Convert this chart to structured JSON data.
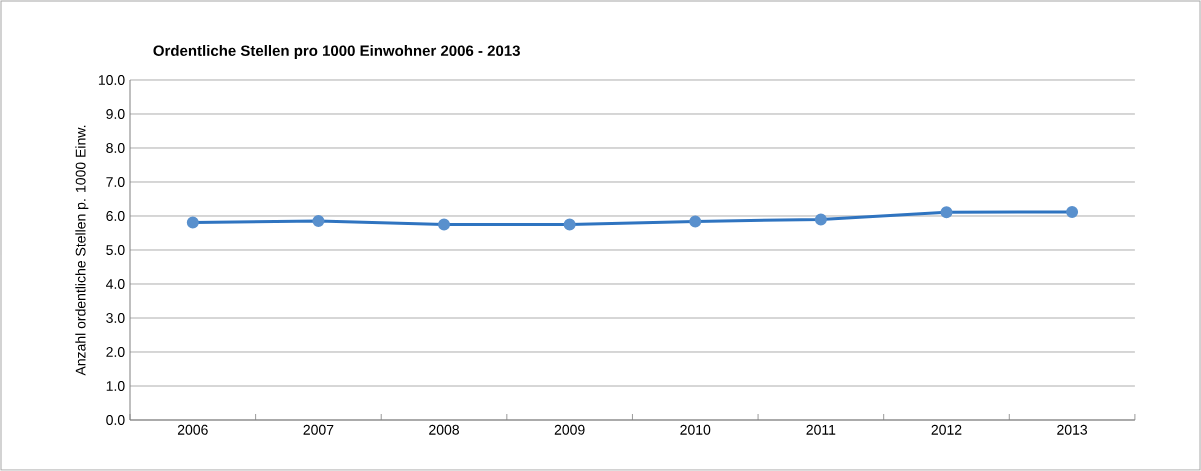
{
  "chart_data": {
    "type": "line",
    "title": "Ordentliche Stellen pro 1000 Einwohner 2006 - 2013",
    "ylabel": "Anzahl ordentliche Stellen p. 1000 Einw.",
    "categories": [
      "2006",
      "2007",
      "2008",
      "2009",
      "2010",
      "2011",
      "2012",
      "2013"
    ],
    "series": [
      {
        "color": "#2f74c0",
        "values": [
          5.81,
          5.85,
          5.75,
          5.75,
          5.84,
          5.9,
          6.11,
          6.12
        ]
      }
    ],
    "ylim": [
      0,
      10
    ],
    "yticks": [
      {
        "value": 0,
        "label": "0.0"
      },
      {
        "value": 1,
        "label": "1.0"
      },
      {
        "value": 2,
        "label": "2.0"
      },
      {
        "value": 3,
        "label": "3.0"
      },
      {
        "value": 4,
        "label": "4.0"
      },
      {
        "value": 5,
        "label": "5.0"
      },
      {
        "value": 6,
        "label": "6.0"
      },
      {
        "value": 7,
        "label": "7.0"
      },
      {
        "value": 8,
        "label": "8.0"
      },
      {
        "value": 9,
        "label": "9.0"
      },
      {
        "value": 10,
        "label": "10.0"
      }
    ],
    "grid": "y",
    "marker": "circle"
  }
}
